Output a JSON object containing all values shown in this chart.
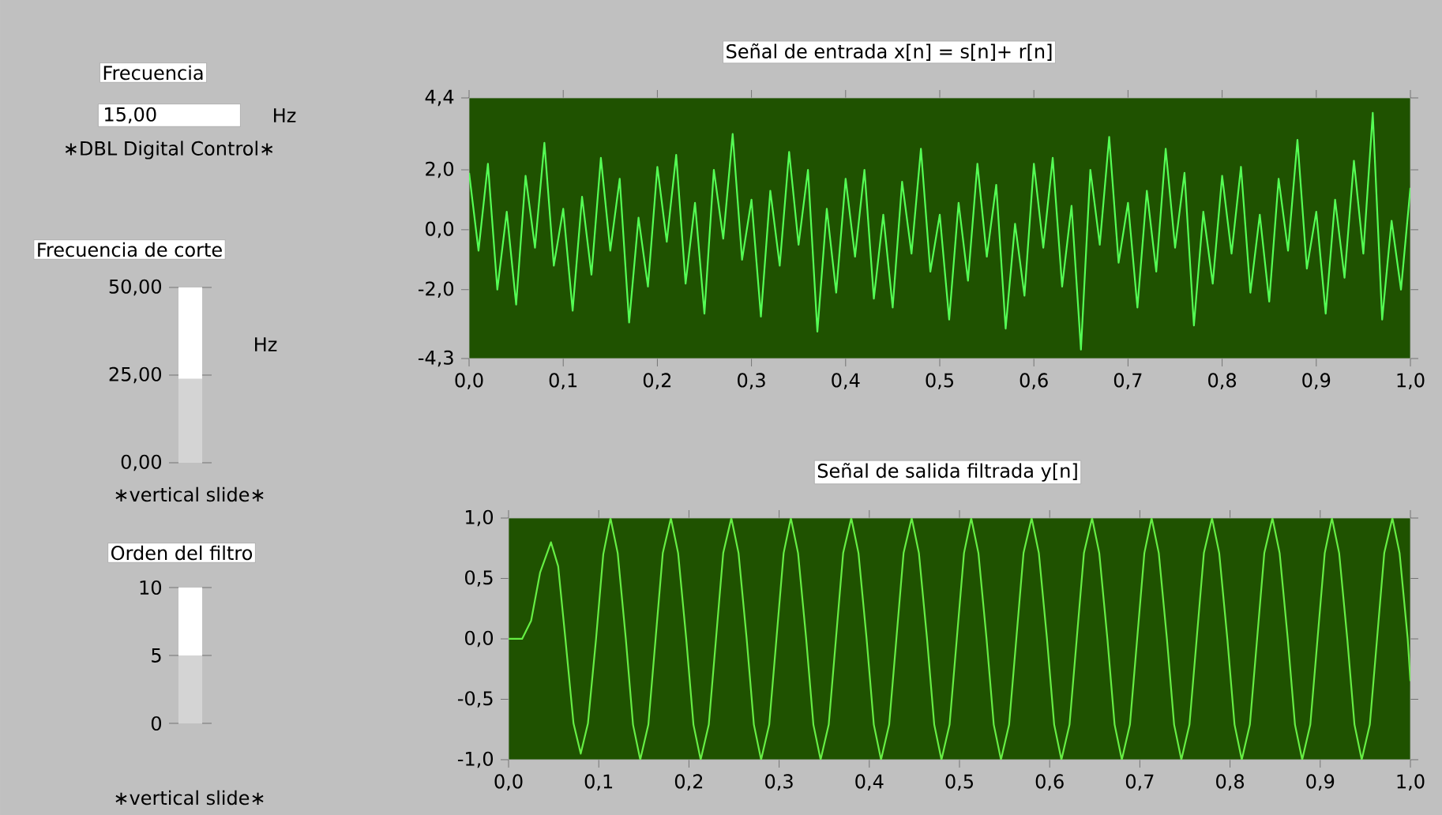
{
  "chart_data": [
    {
      "type": "other",
      "title": "Frecuencia",
      "annotations": [
        "15,00",
        "Hz",
        "∗DBL Digital Control∗"
      ]
    },
    {
      "type": "bar",
      "title": "Frecuencia de corte",
      "categories": [
        null
      ],
      "values": [
        24
      ],
      "color": "#d4d4d4",
      "ylim": [
        0,
        50
      ],
      "yticks": [
        {
          "value": 0,
          "label": "0,00"
        },
        {
          "value": 25,
          "label": "25,00"
        },
        {
          "value": 50,
          "label": "50,00"
        }
      ],
      "annotations": [
        "Hz",
        "∗vertical slide∗"
      ]
    },
    {
      "type": "bar",
      "title": "Orden del filtro",
      "categories": [
        null
      ],
      "values": [
        5
      ],
      "color": "#d4d4d4",
      "ylim": [
        0,
        10
      ],
      "yticks": [
        0,
        5,
        10
      ],
      "annotations": [
        "∗vertical slide∗"
      ]
    },
    {
      "type": "line",
      "title": "Señal de entrada x[n] = s[n]+ r[n]",
      "color": "#55ff55",
      "x": [
        0.0,
        0.01,
        0.02,
        0.03,
        0.04,
        0.05,
        0.06,
        0.07,
        0.08,
        0.09,
        0.1,
        0.11,
        0.12,
        0.13,
        0.14,
        0.15,
        0.16,
        0.17,
        0.18,
        0.19,
        0.2,
        0.21,
        0.22,
        0.23,
        0.24,
        0.25,
        0.26,
        0.27,
        0.28,
        0.29,
        0.3,
        0.31,
        0.32,
        0.33,
        0.34,
        0.35,
        0.36,
        0.37,
        0.38,
        0.39,
        0.4,
        0.41,
        0.42,
        0.43,
        0.44,
        0.45,
        0.46,
        0.47,
        0.48,
        0.49,
        0.5,
        0.51,
        0.52,
        0.53,
        0.54,
        0.55,
        0.56,
        0.57,
        0.58,
        0.59,
        0.6,
        0.61,
        0.62,
        0.63,
        0.64,
        0.65,
        0.66,
        0.67,
        0.68,
        0.69,
        0.7,
        0.71,
        0.72,
        0.73,
        0.74,
        0.75,
        0.76,
        0.77,
        0.78,
        0.79,
        0.8,
        0.81,
        0.82,
        0.83,
        0.84,
        0.85,
        0.86,
        0.87,
        0.88,
        0.89,
        0.9,
        0.91,
        0.92,
        0.93,
        0.94,
        0.95,
        0.96,
        0.97,
        0.98,
        0.99,
        1.0
      ],
      "values": [
        1.9,
        -0.7,
        2.2,
        -2.0,
        0.6,
        -2.5,
        1.8,
        -0.6,
        2.9,
        -1.2,
        0.7,
        -2.7,
        1.1,
        -1.5,
        2.4,
        -0.7,
        1.7,
        -3.1,
        0.4,
        -1.9,
        2.1,
        -0.4,
        2.5,
        -1.8,
        0.9,
        -2.8,
        2.0,
        -0.3,
        3.2,
        -1.0,
        1.0,
        -2.9,
        1.3,
        -1.2,
        2.6,
        -0.5,
        2.0,
        -3.4,
        0.7,
        -2.1,
        1.7,
        -0.9,
        2.0,
        -2.3,
        0.5,
        -2.6,
        1.6,
        -0.8,
        2.7,
        -1.4,
        0.5,
        -3.0,
        0.9,
        -1.7,
        2.2,
        -0.9,
        1.5,
        -3.3,
        0.2,
        -2.2,
        2.2,
        -0.6,
        2.4,
        -1.9,
        0.8,
        -4.0,
        2.0,
        -0.5,
        3.1,
        -1.1,
        0.9,
        -2.6,
        1.3,
        -1.4,
        2.7,
        -0.6,
        1.9,
        -3.2,
        0.6,
        -1.8,
        1.8,
        -0.8,
        2.1,
        -2.1,
        0.5,
        -2.4,
        1.7,
        -0.7,
        3.0,
        -1.3,
        0.6,
        -2.8,
        1.0,
        -1.6,
        2.3,
        -0.8,
        3.9,
        -3.0,
        0.3,
        -2.0,
        1.4
      ],
      "xlim": [
        0,
        1
      ],
      "xticks": [
        {
          "value": 0,
          "label": "0,0"
        },
        {
          "value": 0.1,
          "label": "0,1"
        },
        {
          "value": 0.2,
          "label": "0,2"
        },
        {
          "value": 0.3,
          "label": "0,3"
        },
        {
          "value": 0.4,
          "label": "0,4"
        },
        {
          "value": 0.5,
          "label": "0,5"
        },
        {
          "value": 0.6,
          "label": "0,6"
        },
        {
          "value": 0.7,
          "label": "0,7"
        },
        {
          "value": 0.8,
          "label": "0,8"
        },
        {
          "value": 0.9,
          "label": "0,9"
        },
        {
          "value": 1,
          "label": "1,0"
        }
      ],
      "ylim": [
        -4.3,
        4.4
      ],
      "yticks": [
        {
          "value": -4.3,
          "label": "-4,3"
        },
        {
          "value": -2,
          "label": "-2,0"
        },
        {
          "value": 0,
          "label": "0,0"
        },
        {
          "value": 2,
          "label": "2,0"
        },
        {
          "value": 4.4,
          "label": "4,4"
        }
      ]
    },
    {
      "type": "line",
      "title": "Señal de salida filtrada y[n]",
      "color": "#66ee44",
      "x": [
        0,
        0.015,
        0.025,
        0.035,
        0.047,
        0.055,
        0.063,
        0.072,
        0.08,
        0.088,
        0.097,
        0.105,
        0.113,
        0.121,
        0.13,
        0.138,
        0.146,
        0.155,
        0.163,
        0.171,
        0.18,
        0.188,
        0.197,
        0.205,
        0.213,
        0.222,
        0.23,
        0.238,
        0.247,
        0.255,
        0.264,
        0.272,
        0.28,
        0.289,
        0.297,
        0.305,
        0.313,
        0.321,
        0.33,
        0.338,
        0.346,
        0.355,
        0.363,
        0.371,
        0.38,
        0.388,
        0.397,
        0.405,
        0.413,
        0.422,
        0.43,
        0.438,
        0.447,
        0.455,
        0.464,
        0.472,
        0.48,
        0.489,
        0.497,
        0.505,
        0.513,
        0.521,
        0.53,
        0.538,
        0.546,
        0.555,
        0.563,
        0.571,
        0.58,
        0.588,
        0.597,
        0.605,
        0.613,
        0.622,
        0.63,
        0.638,
        0.647,
        0.655,
        0.664,
        0.672,
        0.68,
        0.689,
        0.697,
        0.705,
        0.713,
        0.721,
        0.73,
        0.738,
        0.746,
        0.755,
        0.763,
        0.771,
        0.78,
        0.788,
        0.797,
        0.805,
        0.813,
        0.822,
        0.83,
        0.838,
        0.847,
        0.855,
        0.864,
        0.872,
        0.88,
        0.889,
        0.897,
        0.905,
        0.913,
        0.921,
        0.93,
        0.938,
        0.946,
        0.955,
        0.963,
        0.971,
        0.98,
        0.988,
        0.997,
        1.0
      ],
      "values": [
        0,
        0,
        0.15,
        0.55,
        0.8,
        0.6,
        0,
        -0.7,
        -0.95,
        -0.7,
        0,
        0.7,
        1,
        0.71,
        0,
        -0.71,
        -1,
        -0.71,
        0,
        0.71,
        1,
        0.71,
        0,
        -0.71,
        -1,
        -0.71,
        0,
        0.71,
        1,
        0.71,
        0,
        -0.71,
        -1,
        -0.71,
        0,
        0.71,
        1,
        0.71,
        0,
        -0.71,
        -1,
        -0.71,
        0,
        0.71,
        1,
        0.71,
        0,
        -0.71,
        -1,
        -0.71,
        0,
        0.71,
        1,
        0.71,
        0,
        -0.71,
        -1,
        -0.71,
        0,
        0.71,
        1,
        0.71,
        0,
        -0.71,
        -1,
        -0.71,
        0,
        0.71,
        1,
        0.71,
        0,
        -0.71,
        -1,
        -0.71,
        0,
        0.71,
        1,
        0.71,
        0,
        -0.71,
        -1,
        -0.71,
        0,
        0.71,
        1,
        0.71,
        0,
        -0.71,
        -1,
        -0.71,
        0,
        0.71,
        1,
        0.71,
        0,
        -0.71,
        -1,
        -0.71,
        0,
        0.71,
        1,
        0.71,
        0,
        -0.71,
        -1,
        -0.71,
        0,
        0.71,
        1,
        0.71,
        0,
        -0.71,
        -1,
        -0.71,
        0,
        0.71,
        1,
        0.71,
        0,
        -0.35
      ],
      "xlim": [
        0,
        1
      ],
      "xticks": [
        {
          "value": 0,
          "label": "0,0"
        },
        {
          "value": 0.1,
          "label": "0,1"
        },
        {
          "value": 0.2,
          "label": "0,2"
        },
        {
          "value": 0.3,
          "label": "0,3"
        },
        {
          "value": 0.4,
          "label": "0,4"
        },
        {
          "value": 0.5,
          "label": "0,5"
        },
        {
          "value": 0.6,
          "label": "0,6"
        },
        {
          "value": 0.7,
          "label": "0,7"
        },
        {
          "value": 0.8,
          "label": "0,8"
        },
        {
          "value": 0.9,
          "label": "0,9"
        },
        {
          "value": 1,
          "label": "1,0"
        }
      ],
      "ylim": [
        -1,
        1
      ],
      "yticks": [
        {
          "value": -1,
          "label": "-1,0"
        },
        {
          "value": -0.5,
          "label": "-0,5"
        },
        {
          "value": 0,
          "label": "0,0"
        },
        {
          "value": 0.5,
          "label": "0,5"
        },
        {
          "value": 1,
          "label": "1,0"
        }
      ]
    }
  ]
}
